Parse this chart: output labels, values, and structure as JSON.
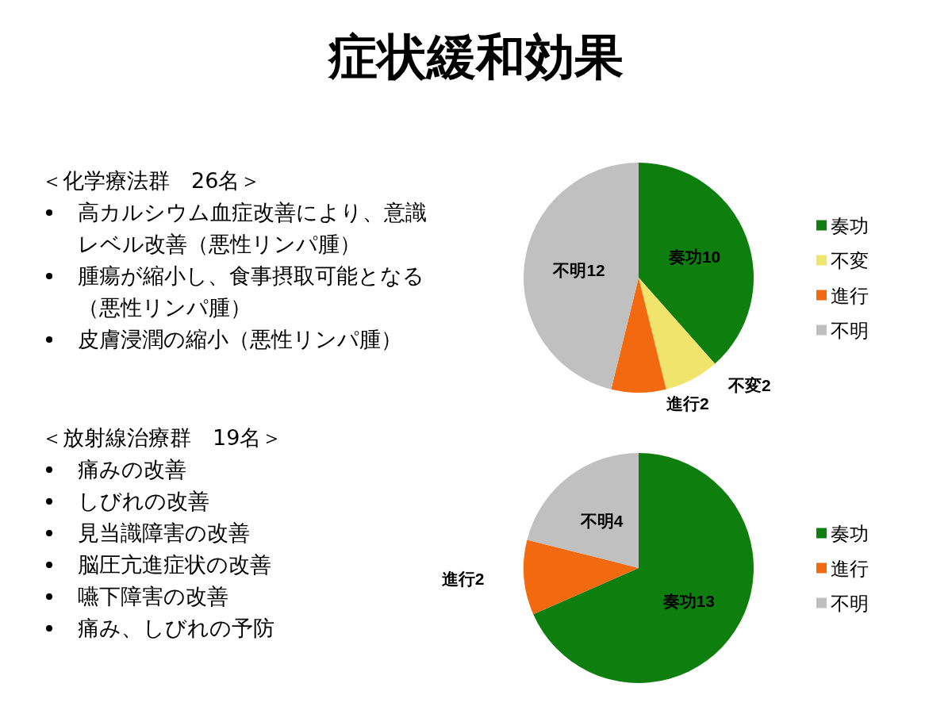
{
  "chart_data": [
    {
      "type": "other",
      "title": "症状緩和効果"
    },
    {
      "type": "other",
      "title": "＜化学療法群　26名＞",
      "annotations": [
        "高カルシウム血症改善により、意識レベル改善（悪性リンパ腫）",
        "腫瘍が縮小し、食事摂取可能となる（悪性リンパ腫）",
        "皮膚浸潤の縮小（悪性リンパ腫）"
      ]
    },
    {
      "type": "pie",
      "categories": [
        "奏功",
        "不変",
        "進行",
        "不明"
      ],
      "values": [
        10,
        2,
        2,
        12
      ],
      "colors": [
        "#0e7e0e",
        "#f0e46c",
        "#f2690f",
        "#c0c0c0"
      ],
      "value_labels": [
        "奏功10",
        "不変2",
        "進行2",
        "不明12"
      ],
      "legend": "right"
    },
    {
      "type": "other",
      "title": "＜放射線治療群　19名＞",
      "annotations": [
        "痛みの改善",
        "しびれの改善",
        "見当識障害の改善",
        "脳圧亢進症状の改善",
        "嚥下障害の改善",
        "痛み、しびれの予防"
      ]
    },
    {
      "type": "pie",
      "categories": [
        "奏功",
        "進行",
        "不明"
      ],
      "values": [
        13,
        2,
        4
      ],
      "colors": [
        "#0e7e0e",
        "#f2690f",
        "#c0c0c0"
      ],
      "value_labels": [
        "奏功13",
        "進行2",
        "不明4"
      ],
      "legend": "right"
    }
  ]
}
